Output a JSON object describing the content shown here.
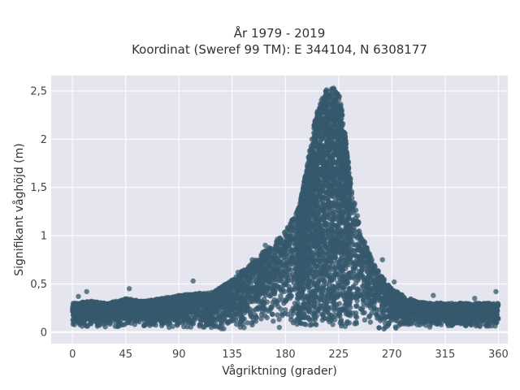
{
  "chart_data": {
    "type": "scatter",
    "title_line1": "År 1979 - 2019",
    "title_line2": "Koordinat (Sweref 99 TM): E 344104, N 6308177",
    "xlabel": "Vågriktning (grader)",
    "ylabel": "Signifikant våghöjd (m)",
    "xlim": [
      -18,
      368
    ],
    "ylim": [
      -0.12,
      2.66
    ],
    "x_ticks": [
      0,
      45,
      90,
      135,
      180,
      225,
      270,
      315,
      360
    ],
    "x_tick_labels": [
      "0",
      "45",
      "90",
      "135",
      "180",
      "225",
      "270",
      "315",
      "360"
    ],
    "y_ticks": [
      0,
      0.5,
      1,
      1.5,
      2,
      2.5
    ],
    "y_tick_labels": [
      "0",
      "0,5",
      "1",
      "1,5",
      "2",
      "2,5"
    ],
    "grid": true,
    "marker_color": "#35586c",
    "background_color": "#e5e5ef",
    "envelope": {
      "x": [
        0,
        15,
        30,
        45,
        60,
        75,
        90,
        105,
        120,
        135,
        150,
        160,
        170,
        180,
        190,
        195,
        200,
        205,
        210,
        215,
        218,
        222,
        226,
        230,
        235,
        240,
        245,
        250,
        255,
        260,
        270,
        280,
        290,
        300,
        315,
        330,
        345,
        360
      ],
      "y_max": [
        0.3,
        0.32,
        0.3,
        0.35,
        0.32,
        0.35,
        0.38,
        0.4,
        0.42,
        0.55,
        0.7,
        0.82,
        0.92,
        1.05,
        1.25,
        1.5,
        1.85,
        2.2,
        2.42,
        2.52,
        2.55,
        2.52,
        2.45,
        2.1,
        1.6,
        1.25,
        1.0,
        0.85,
        0.72,
        0.6,
        0.45,
        0.38,
        0.32,
        0.3,
        0.3,
        0.3,
        0.3,
        0.3
      ],
      "y_min": [
        0.05,
        0.05,
        0.05,
        0.05,
        0.05,
        0.04,
        0.04,
        0.03,
        0.03,
        0.02,
        0.02,
        0.02,
        0.02,
        0.02,
        0.02,
        0.02,
        0.02,
        0.02,
        0.02,
        0.02,
        0.02,
        0.02,
        0.02,
        0.02,
        0.02,
        0.02,
        0.02,
        0.02,
        0.02,
        0.02,
        0.03,
        0.04,
        0.05,
        0.05,
        0.05,
        0.05,
        0.05,
        0.05
      ]
    },
    "outliers": [
      {
        "x": 5,
        "y": 0.37
      },
      {
        "x": 12,
        "y": 0.42
      },
      {
        "x": 48,
        "y": 0.45
      },
      {
        "x": 102,
        "y": 0.53
      },
      {
        "x": 140,
        "y": 0.62
      },
      {
        "x": 152,
        "y": 0.75
      },
      {
        "x": 163,
        "y": 0.9
      },
      {
        "x": 262,
        "y": 0.75
      },
      {
        "x": 272,
        "y": 0.52
      },
      {
        "x": 305,
        "y": 0.38
      },
      {
        "x": 340,
        "y": 0.35
      },
      {
        "x": 358,
        "y": 0.42
      }
    ]
  }
}
